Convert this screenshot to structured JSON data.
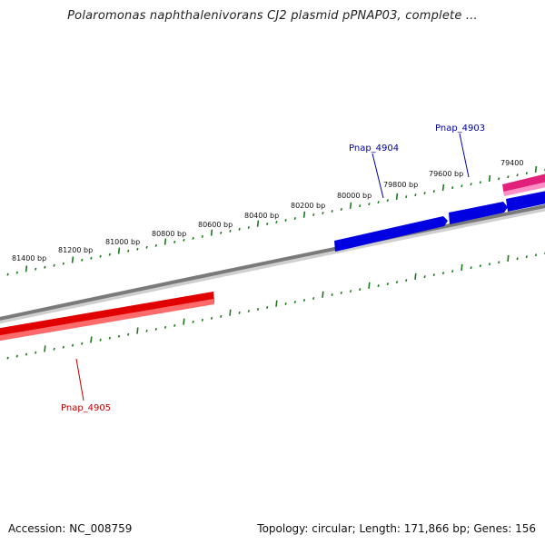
{
  "title": "Polaromonas naphthalenivorans CJ2 plasmid pPNAP03, complete ...",
  "footer": {
    "accession": "Accession: NC_008759",
    "summary": "Topology: circular; Length: 171,866 bp; Genes: 156"
  },
  "colors": {
    "backbone": "#7a7a7a",
    "ticks": "#1a7a1a",
    "forward_gene": "#0000e0",
    "reverse_gene": "#e00000",
    "other_gene": "#e0207a",
    "forward_label": "#0000a0",
    "reverse_label": "#c00000"
  },
  "scale_labels": [
    "79400",
    "79600 bp",
    "79800 bp",
    "80000 bp",
    "80200 bp",
    "80400 bp",
    "80600 bp",
    "80800 bp",
    "81000 bp",
    "81200 bp",
    "81400 bp"
  ],
  "genes": [
    {
      "name": "Pnap_4903",
      "strand": "forward"
    },
    {
      "name": "Pnap_4904",
      "strand": "forward"
    },
    {
      "name": "Pnap_4905",
      "strand": "reverse"
    }
  ]
}
